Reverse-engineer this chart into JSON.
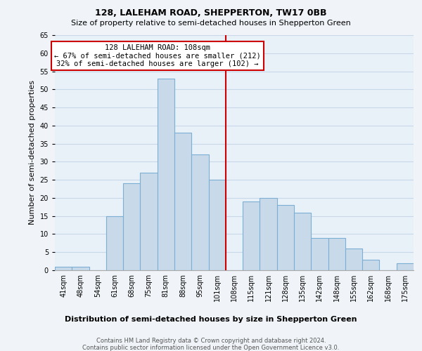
{
  "title": "128, LALEHAM ROAD, SHEPPERTON, TW17 0BB",
  "subtitle": "Size of property relative to semi-detached houses in Shepperton Green",
  "xlabel": "Distribution of semi-detached houses by size in Shepperton Green",
  "ylabel": "Number of semi-detached properties",
  "footnote1": "Contains HM Land Registry data © Crown copyright and database right 2024.",
  "footnote2": "Contains public sector information licensed under the Open Government Licence v3.0.",
  "bin_labels": [
    "41sqm",
    "48sqm",
    "54sqm",
    "61sqm",
    "68sqm",
    "75sqm",
    "81sqm",
    "88sqm",
    "95sqm",
    "101sqm",
    "108sqm",
    "115sqm",
    "121sqm",
    "128sqm",
    "135sqm",
    "142sqm",
    "148sqm",
    "155sqm",
    "162sqm",
    "168sqm",
    "175sqm"
  ],
  "bar_values": [
    1,
    1,
    0,
    15,
    24,
    27,
    53,
    38,
    32,
    25,
    0,
    19,
    20,
    18,
    16,
    9,
    9,
    6,
    3,
    0,
    2
  ],
  "bar_color": "#c8daea",
  "bar_edge_color": "#7bafd4",
  "vline_color": "#cc0000",
  "annotation_line1": "128 LALEHAM ROAD: 108sqm",
  "annotation_line2": "← 67% of semi-detached houses are smaller (212)",
  "annotation_line3": "32% of semi-detached houses are larger (102) →",
  "annotation_box_edgecolor": "#cc0000",
  "annotation_box_facecolor": "#ffffff",
  "ylim": [
    0,
    65
  ],
  "yticks": [
    0,
    5,
    10,
    15,
    20,
    25,
    30,
    35,
    40,
    45,
    50,
    55,
    60,
    65
  ],
  "grid_color": "#c8d8e8",
  "plot_bg_color": "#e8f0f8",
  "fig_bg_color": "#f0f4f8",
  "title_fontsize": 9,
  "subtitle_fontsize": 8,
  "ylabel_fontsize": 8,
  "tick_fontsize": 7,
  "xlabel_fontsize": 8,
  "footnote_fontsize": 6
}
